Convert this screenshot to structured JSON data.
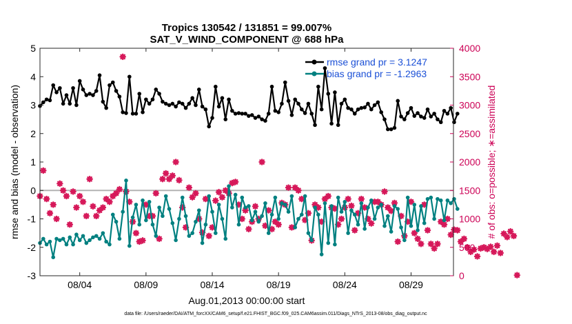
{
  "chart_data": {
    "type": "line",
    "title_line1": "Tropics 130542 / 131851 = 99.007%",
    "title_line2": "SAT_V_WIND_COMPONENT @ 688 hPa",
    "xlabel": "Aug.01,2013 00:00:00 start",
    "ylabel_left": "rmse and bias (model - observation)",
    "ylabel_right": "# of obs: o=possible; ∗=assimilated",
    "footnote": "data file: /Users/raeder/DAI/ATM_forcXX/CAM6_setup/f.e21.FHIST_BGC.f09_025.CAM6assim.011/Diags_NTrS_2013-08/obs_diag_output.nc",
    "xlim": [
      1.0,
      32.2
    ],
    "ylim_left": [
      -3,
      5
    ],
    "ylim_right": [
      0,
      4000
    ],
    "left_ticks": [
      "-3",
      "-2",
      "-1",
      "0",
      "1",
      "2",
      "3",
      "4",
      "5"
    ],
    "right_ticks": [
      "0",
      "500",
      "1000",
      "1500",
      "2000",
      "2500",
      "3000",
      "3500",
      "4000"
    ],
    "x_ticks": [
      {
        "x": 4,
        "label": "08/04"
      },
      {
        "x": 9,
        "label": "08/09"
      },
      {
        "x": 14,
        "label": "08/14"
      },
      {
        "x": 19,
        "label": "08/19"
      },
      {
        "x": 24,
        "label": "08/24"
      },
      {
        "x": 29,
        "label": "08/29"
      }
    ],
    "zero_line": 0,
    "x_start": 1.0,
    "x_step": 0.25,
    "series": [
      {
        "name": "rmse grand pr = 3.1247",
        "color": "#000000",
        "values": [
          2.97,
          3.1,
          3.2,
          3.17,
          3.7,
          3.45,
          3.6,
          3.05,
          3.35,
          3.05,
          3.6,
          3.0,
          3.85,
          3.55,
          3.35,
          3.4,
          3.35,
          3.5,
          4.05,
          3.12,
          2.9,
          3.7,
          3.8,
          3.5,
          3.3,
          2.75,
          2.72,
          4.0,
          2.7,
          2.7,
          3.4,
          2.75,
          3.2,
          3.05,
          3.2,
          3.55,
          3.4,
          3.12,
          3.05,
          3.0,
          3.05,
          2.95,
          3.1,
          3.05,
          2.9,
          3.05,
          3.25,
          3.0,
          3.55,
          2.95,
          2.85,
          2.25,
          2.55,
          3.65,
          2.95,
          3.25,
          2.5,
          3.2,
          2.8,
          2.7,
          2.72,
          2.7,
          2.7,
          2.62,
          2.65,
          2.55,
          2.6,
          2.5,
          2.45,
          2.7,
          3.65,
          2.8,
          2.75,
          3.05,
          3.8,
          3.15,
          2.65,
          3.2,
          3.05,
          2.85,
          2.72,
          3.05,
          2.7,
          2.3,
          3.65,
          2.85,
          4.3,
          3.4,
          2.35,
          3.45,
          2.3,
          3.05,
          3.2,
          2.9,
          2.85,
          2.7,
          2.85,
          2.9,
          2.92,
          3.05,
          2.85,
          3.0,
          3.1,
          2.75,
          2.5,
          2.15,
          2.15,
          2.2,
          3.15,
          2.6,
          2.5,
          2.72,
          2.9,
          2.62,
          2.72,
          2.6,
          2.55,
          2.85,
          2.6,
          2.7,
          2.5,
          2.4,
          2.8,
          2.7,
          2.9,
          2.4,
          2.7
        ]
      },
      {
        "name": "bias grand pr = -1.2963",
        "color": "#008080",
        "values": [
          -1.85,
          -1.7,
          -1.9,
          -1.8,
          -2.35,
          -1.7,
          -1.75,
          -1.7,
          -1.9,
          -1.65,
          -1.9,
          -1.55,
          -1.75,
          -1.6,
          -1.85,
          -1.75,
          -1.65,
          -1.6,
          -1.7,
          -1.5,
          -1.8,
          -1.9,
          -0.85,
          -1.1,
          -1.7,
          -0.75,
          0.35,
          -1.95,
          -0.95,
          -0.5,
          -1.2,
          -0.35,
          -1.05,
          -0.4,
          -1.2,
          -1.6,
          -0.6,
          -0.9,
          -0.2,
          -0.65,
          -1.15,
          -1.75,
          -1.0,
          -0.25,
          -0.9,
          -1.6,
          -1.5,
          -1.1,
          -0.7,
          -1.85,
          -1.2,
          -0.2,
          -0.75,
          -1.5,
          -0.5,
          -1.0,
          -1.7,
          0.15,
          -0.6,
          -0.15,
          -1.2,
          -0.25,
          -0.6,
          -0.55,
          -1.05,
          -0.75,
          -1.1,
          -0.9,
          -0.45,
          -1.5,
          -0.85,
          -0.25,
          -1.0,
          -0.45,
          -0.5,
          -0.75,
          -0.2,
          -1.3,
          -1.0,
          -0.85,
          -0.2,
          -1.5,
          -1.75,
          -0.6,
          -0.85,
          -2.25,
          -0.45,
          -1.85,
          -0.55,
          -1.9,
          -0.25,
          -0.75,
          -0.4,
          -1.5,
          -0.7,
          -0.85,
          -1.2,
          -0.45,
          -1.35,
          -0.6,
          -0.35,
          -1.0,
          -0.6,
          -0.5,
          -1.25,
          -0.9,
          -1.45,
          -0.55,
          -0.65,
          -1.3,
          -1.75,
          -0.25,
          -1.25,
          -0.5,
          -1.4,
          -0.55,
          -1.15,
          -0.3,
          -0.25,
          -1.0,
          -0.3,
          -0.35,
          -1.05,
          -0.35,
          -0.45,
          -0.3,
          -0.65
        ]
      },
      {
        "name": "assimilated",
        "color": "#d6195a",
        "values": [
          1400,
          1850,
          1350,
          1100,
          1250,
          1000,
          1620,
          1500,
          1400,
          900,
          1480,
          1200,
          1400,
          1300,
          1050,
          1700,
          1220,
          1050,
          1150,
          1200,
          1350,
          1300,
          1400,
          1450,
          1520,
          3850,
          1480,
          1300,
          950,
          750,
          600,
          620,
          1250,
          1050,
          1050,
          1450,
          650,
          1700,
          1800,
          1700,
          1760,
          2000,
          1680,
          1200,
          850,
          1550,
          1380,
          1450,
          1000,
          760,
          1350,
          700,
          850,
          1320,
          1470,
          1380,
          1500,
          1450,
          1630,
          1650,
          1250,
          1000,
          1150,
          820,
          950,
          1220,
          1000,
          2000,
          880,
          1150,
          820,
          950,
          900,
          1280,
          1250,
          1550,
          850,
          1550,
          1500,
          1350,
          980,
          1100,
          620,
          1250,
          1200,
          950,
          1350,
          1400,
          1200,
          1180,
          900,
          1000,
          1200,
          1350,
          1230,
          800,
          1100,
          1350,
          1200,
          1000,
          920,
          1300,
          1300,
          1250,
          1480,
          1200,
          1140,
          1280,
          600,
          1050,
          700,
          950,
          1300,
          750,
          650,
          560,
          1250,
          800,
          560,
          480,
          560,
          950,
          900,
          1000,
          720,
          810,
          800,
          600,
          650,
          500,
          420,
          460,
          340,
          480,
          500,
          470,
          510,
          420,
          530,
          400,
          740,
          680,
          780,
          700,
          10
        ]
      }
    ]
  }
}
